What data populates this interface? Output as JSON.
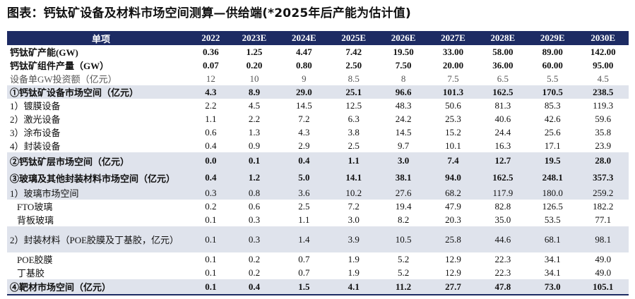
{
  "title": "图表：钙钛矿设备及材料市场空间测算—供给端(*2025年后产能为估计值)",
  "table": {
    "headers": [
      "单项",
      "2022",
      "2023E",
      "2024E",
      "2025E",
      "2026E",
      "2027E",
      "2028E",
      "2029E",
      "2030E"
    ],
    "rows": [
      {
        "label": "钙钛矿产能(GW)",
        "values": [
          "0.36",
          "1.25",
          "4.47",
          "7.42",
          "19.50",
          "33.00",
          "58.00",
          "89.00",
          "142.00"
        ]
      },
      {
        "label": "钙钛矿组件产量（GW）",
        "values": [
          "0.07",
          "0.20",
          "0.80",
          "2.50",
          "7.50",
          "20.00",
          "36.00",
          "60.00",
          "95.00"
        ]
      },
      {
        "label": "设备单GW投资额（亿元）",
        "values": [
          "12",
          "10",
          "9",
          "8.5",
          "8",
          "7.5",
          "6.5",
          "5.5",
          "4.5"
        ]
      },
      {
        "label": "①钙钛矿设备市场空间（亿元）",
        "values": [
          "4.3",
          "8.9",
          "29.0",
          "25.1",
          "96.6",
          "101.3",
          "162.5",
          "170.5",
          "238.5"
        ]
      },
      {
        "label": "1）镀膜设备",
        "values": [
          "2.2",
          "4.5",
          "14.5",
          "12.5",
          "48.3",
          "50.6",
          "81.3",
          "85.3",
          "119.3"
        ]
      },
      {
        "label": "2）激光设备",
        "values": [
          "1.1",
          "2.2",
          "7.2",
          "6.3",
          "24.2",
          "25.3",
          "40.6",
          "42.6",
          "59.6"
        ]
      },
      {
        "label": "3）涂布设备",
        "values": [
          "0.6",
          "1.3",
          "4.3",
          "3.8",
          "14.5",
          "15.2",
          "24.4",
          "25.6",
          "35.8"
        ]
      },
      {
        "label": "4）封装设备",
        "values": [
          "0.4",
          "0.9",
          "2.9",
          "2.5",
          "9.7",
          "10.1",
          "16.3",
          "17.1",
          "23.9"
        ]
      },
      {
        "label": "②钙钛矿层市场空间（亿元）",
        "values": [
          "0.0",
          "0.1",
          "0.4",
          "1.1",
          "3.0",
          "7.4",
          "12.7",
          "19.5",
          "28.0"
        ]
      },
      {
        "label": "③玻璃及其他封装材料市场空间（亿元）",
        "values": [
          "0.4",
          "1.2",
          "5.0",
          "14.1",
          "38.1",
          "94.0",
          "162.5",
          "248.1",
          "357.3"
        ]
      },
      {
        "label": "1）玻璃市场空间",
        "values": [
          "0.3",
          "0.8",
          "3.6",
          "10.2",
          "27.6",
          "68.2",
          "117.9",
          "180.0",
          "259.2"
        ]
      },
      {
        "label": "FTO玻璃",
        "values": [
          "0.2",
          "0.6",
          "2.5",
          "7.2",
          "19.4",
          "47.9",
          "82.8",
          "126.5",
          "182.2"
        ]
      },
      {
        "label": "背板玻璃",
        "values": [
          "0.1",
          "0.3",
          "1.1",
          "3.0",
          "8.2",
          "20.3",
          "35.0",
          "53.5",
          "77.1"
        ]
      },
      {
        "label": "2）封装材料（POE胶膜及丁基胶，亿元）",
        "values": [
          "0.1",
          "0.3",
          "1.4",
          "3.9",
          "10.5",
          "25.8",
          "44.6",
          "68.1",
          "98.1"
        ]
      },
      {
        "label": "POE胶膜",
        "values": [
          "0.1",
          "0.2",
          "0.7",
          "1.9",
          "5.2",
          "12.9",
          "22.3",
          "34.1",
          "49.0"
        ]
      },
      {
        "label": "丁基胶",
        "values": [
          "0.1",
          "0.2",
          "0.7",
          "1.9",
          "5.2",
          "12.9",
          "22.3",
          "34.1",
          "49.0"
        ]
      },
      {
        "label": "④靶材市场空间（亿元）",
        "values": [
          "0.1",
          "0.4",
          "1.5",
          "4.1",
          "11.2",
          "27.7",
          "47.8",
          "73.0",
          "105.1"
        ]
      }
    ]
  }
}
